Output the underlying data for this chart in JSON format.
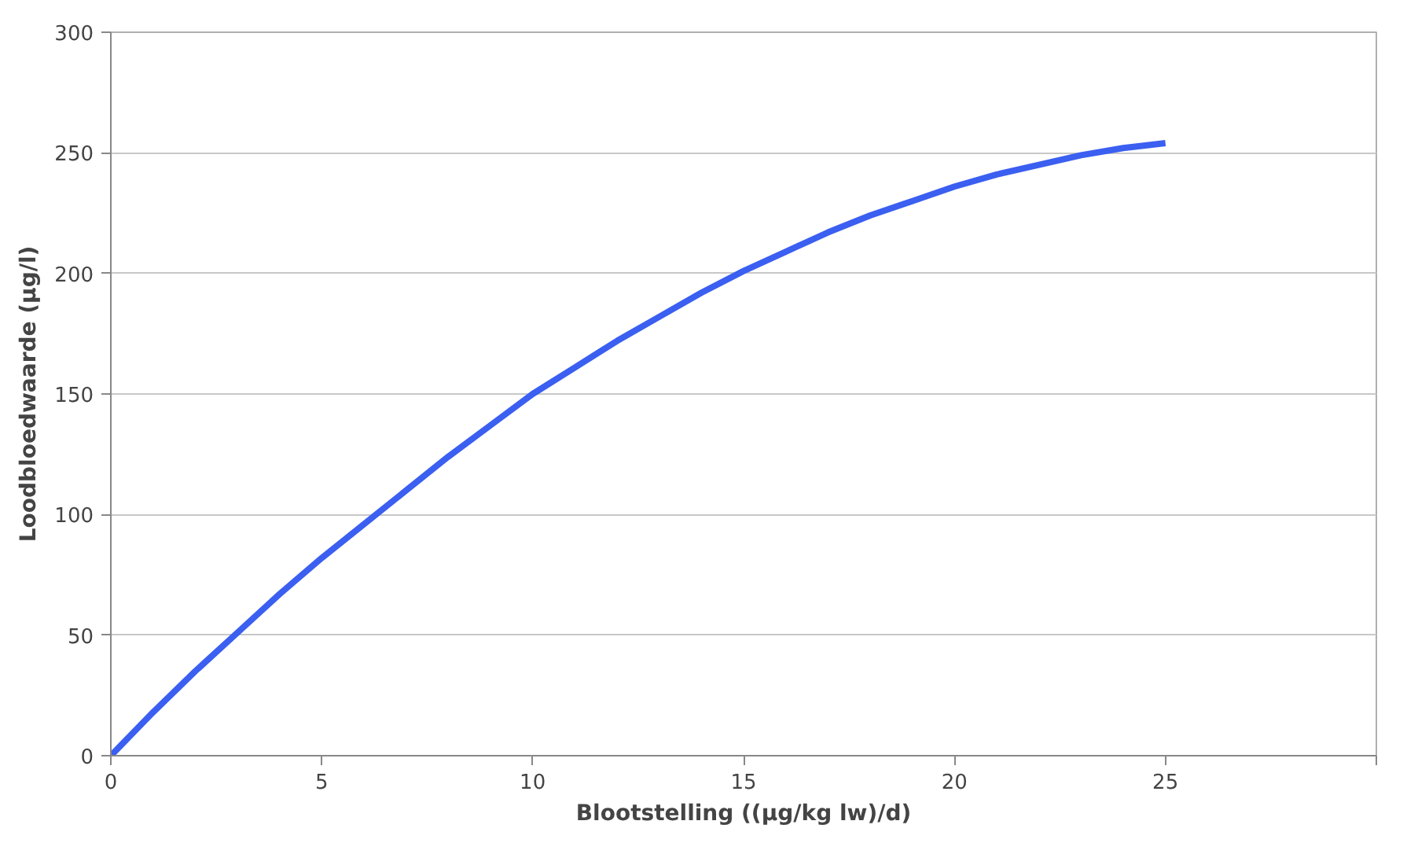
{
  "chart_data": {
    "type": "line",
    "xlabel": "Blootstelling ((µg/kg lw)/d)",
    "ylabel": "Loodbloedwaarde (µg/l)",
    "x": [
      0,
      1,
      2,
      3,
      4,
      5,
      6,
      7,
      8,
      9,
      10,
      11,
      12,
      13,
      14,
      15,
      16,
      17,
      18,
      19,
      20,
      21,
      22,
      23,
      24,
      25
    ],
    "series": [
      {
        "color": "#3b5ff0",
        "values": [
          0,
          18,
          35,
          51,
          67,
          82,
          96,
          110,
          124,
          137,
          150,
          161,
          172,
          182,
          192,
          201,
          209,
          217,
          224,
          230,
          236,
          241,
          245,
          249,
          252,
          254
        ]
      }
    ],
    "xlim": [
      0,
      30
    ],
    "xticks": [
      0,
      5,
      10,
      15,
      20,
      25,
      {
        "value": 30,
        "label": null
      }
    ],
    "ylim": [
      0,
      300
    ],
    "yticks": [
      0,
      50,
      100,
      150,
      200,
      250,
      300
    ],
    "grid": "y",
    "marker": "none",
    "line_style": "solid"
  }
}
